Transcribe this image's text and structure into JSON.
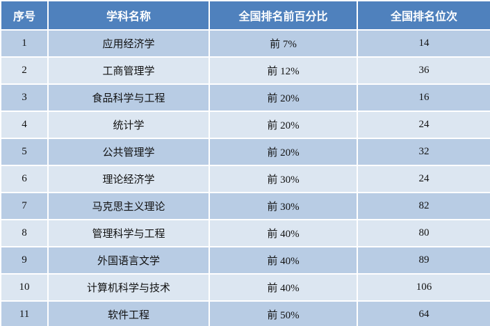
{
  "table": {
    "headers": [
      "序号",
      "学科名称",
      "全国排名前百分比",
      "全国排名位次"
    ],
    "rows": [
      [
        1,
        "应用经济学",
        "前 7%",
        14
      ],
      [
        2,
        "工商管理学",
        "前 12%",
        36
      ],
      [
        3,
        "食品科学与工程",
        "前 20%",
        16
      ],
      [
        4,
        "统计学",
        "前 20%",
        24
      ],
      [
        5,
        "公共管理学",
        "前 20%",
        32
      ],
      [
        6,
        "理论经济学",
        "前 30%",
        24
      ],
      [
        7,
        "马克思主义理论",
        "前 30%",
        82
      ],
      [
        8,
        "管理科学与工程",
        "前 40%",
        80
      ],
      [
        9,
        "外国语言文学",
        "前 40%",
        89
      ],
      [
        10,
        "计算机科学与技术",
        "前 40%",
        106
      ],
      [
        11,
        "软件工程",
        "前 50%",
        64
      ]
    ]
  }
}
